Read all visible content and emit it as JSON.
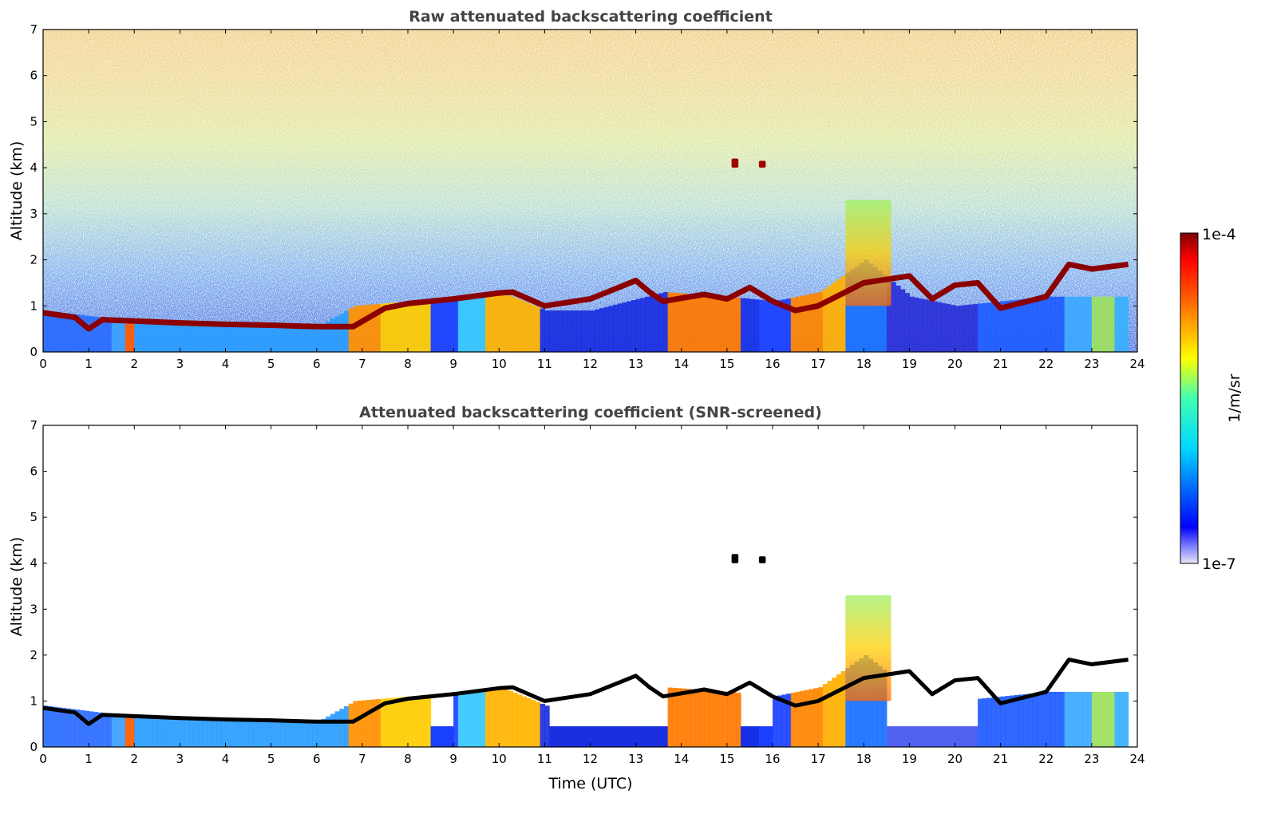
{
  "chart_data": [
    {
      "type": "heatmap",
      "title": "Raw attenuated backscattering coefficient",
      "xlabel": "",
      "ylabel": "Altitude (km)",
      "xlim": [
        0,
        24
      ],
      "ylim": [
        0,
        7
      ],
      "xticks": [
        "0",
        "1",
        "2",
        "3",
        "4",
        "5",
        "6",
        "7",
        "8",
        "9",
        "10",
        "11",
        "12",
        "13",
        "14",
        "15",
        "16",
        "17",
        "18",
        "19",
        "20",
        "21",
        "22",
        "23",
        "24"
      ],
      "yticks": [
        "0",
        "1",
        "2",
        "3",
        "4",
        "5",
        "6",
        "7"
      ],
      "colorscale": "jet",
      "value_range": [
        "1e-7",
        "1e-4"
      ],
      "cloud_base_layer": {
        "time": [
          0,
          0.7,
          1.0,
          1.3,
          2,
          3,
          4,
          5,
          6,
          6.8,
          7.5,
          8,
          9,
          10,
          10.3,
          11,
          12,
          12.5,
          13,
          13.3,
          13.6,
          14.5,
          15,
          15.5,
          16,
          16.5,
          17,
          18,
          19,
          19.5,
          20,
          20.5,
          21,
          22,
          22.5,
          23,
          23.8
        ],
        "altitude_km": [
          0.85,
          0.75,
          0.5,
          0.7,
          0.67,
          0.63,
          0.6,
          0.58,
          0.55,
          0.55,
          0.95,
          1.05,
          1.15,
          1.28,
          1.3,
          1.0,
          1.15,
          1.35,
          1.55,
          1.3,
          1.1,
          1.25,
          1.15,
          1.4,
          1.1,
          0.9,
          1.0,
          1.5,
          1.65,
          1.15,
          1.45,
          1.5,
          0.95,
          1.2,
          1.9,
          1.8,
          1.9
        ]
      },
      "aerosol_top_km": {
        "time": [
          0,
          2,
          4,
          6,
          6.8,
          8,
          10,
          11,
          12,
          13.6,
          15,
          16,
          17,
          18,
          19,
          20,
          21,
          22,
          23,
          23.8
        ],
        "altitude_km": [
          0.9,
          0.65,
          0.58,
          0.55,
          1.0,
          1.1,
          1.3,
          0.9,
          0.9,
          1.3,
          1.2,
          1.1,
          1.3,
          2.0,
          1.2,
          1.0,
          1.1,
          1.2,
          1.2,
          1.2
        ]
      },
      "elevated_features": [
        {
          "time_range": [
            15.1,
            15.25
          ],
          "altitude_range": [
            4.0,
            4.2
          ]
        },
        {
          "time_range": [
            15.7,
            15.85
          ],
          "altitude_range": [
            4.0,
            4.15
          ]
        },
        {
          "time_range": [
            17.6,
            18.6
          ],
          "altitude_range": [
            1.0,
            3.3
          ]
        }
      ]
    },
    {
      "type": "heatmap",
      "title": "Attenuated backscattering coefficient (SNR-screened)",
      "xlabel": "Time (UTC)",
      "ylabel": "Altitude (km)",
      "xlim": [
        0,
        24
      ],
      "ylim": [
        0,
        7
      ],
      "xticks": [
        "0",
        "1",
        "2",
        "3",
        "4",
        "5",
        "6",
        "7",
        "8",
        "9",
        "10",
        "11",
        "12",
        "13",
        "14",
        "15",
        "16",
        "17",
        "18",
        "19",
        "20",
        "21",
        "22",
        "23",
        "24"
      ],
      "yticks": [
        "0",
        "1",
        "2",
        "3",
        "4",
        "5",
        "6",
        "7"
      ],
      "colorscale": "jet",
      "value_range": [
        "1e-7",
        "1e-4"
      ],
      "screened": true
    }
  ],
  "colorbar": {
    "label": "1/m/sr",
    "max_label": "1e-4",
    "min_label": "1e-7"
  },
  "colors": {
    "frame": "#000000",
    "title": "#444444",
    "cloud_core": "#8b0000",
    "cloud_edge_screened": "#000000"
  }
}
